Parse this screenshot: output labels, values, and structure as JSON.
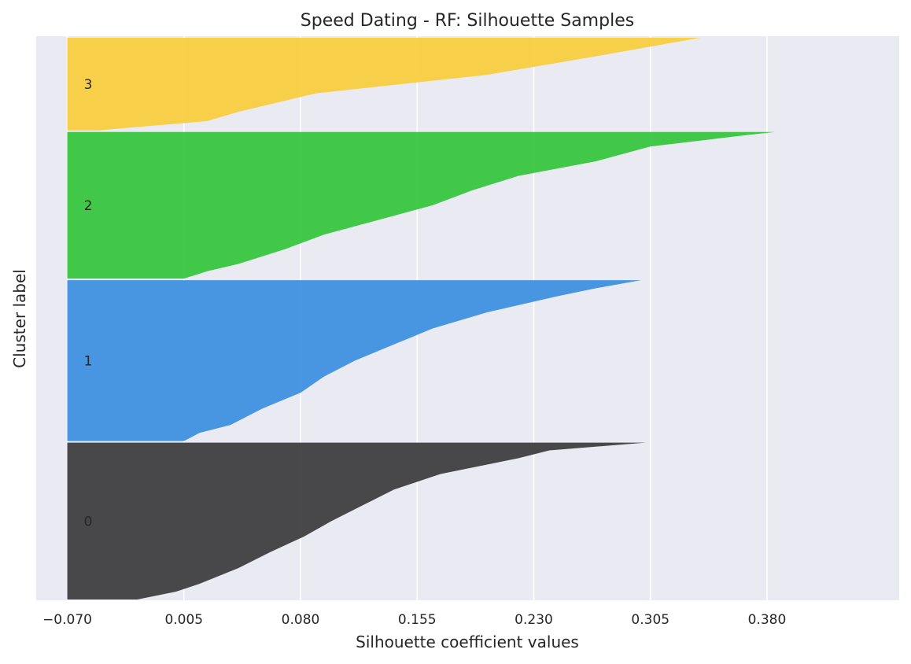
{
  "chart_data": {
    "type": "area",
    "title": "Speed Dating - RF: Silhouette Samples",
    "xlabel": "Silhouette coefficient values",
    "ylabel": "Cluster label",
    "xlim": [
      -0.09,
      0.465
    ],
    "xticks": [
      -0.07,
      0.005,
      0.08,
      0.155,
      0.23,
      0.305,
      0.38
    ],
    "xtick_labels": [
      "−0.070",
      "0.005",
      "0.080",
      "0.155",
      "0.230",
      "0.305",
      "0.380"
    ],
    "grid": true,
    "background": "#eaeaf2",
    "clusters": [
      {
        "label": "0",
        "color": "#3a3a3c",
        "profile": [
          [
            0.0,
            0.302
          ],
          [
            0.05,
            0.24
          ],
          [
            0.1,
            0.22
          ],
          [
            0.2,
            0.17
          ],
          [
            0.3,
            0.14
          ],
          [
            0.4,
            0.12
          ],
          [
            0.5,
            0.1
          ],
          [
            0.6,
            0.082
          ],
          [
            0.7,
            0.06
          ],
          [
            0.8,
            0.04
          ],
          [
            0.9,
            0.015
          ],
          [
            0.95,
            0.0
          ],
          [
            1.0,
            -0.025
          ]
        ]
      },
      {
        "label": "1",
        "color": "#3a8ee0",
        "profile": [
          [
            0.0,
            0.299
          ],
          [
            0.05,
            0.27
          ],
          [
            0.1,
            0.245
          ],
          [
            0.2,
            0.2
          ],
          [
            0.3,
            0.165
          ],
          [
            0.4,
            0.14
          ],
          [
            0.5,
            0.115
          ],
          [
            0.6,
            0.095
          ],
          [
            0.7,
            0.08
          ],
          [
            0.8,
            0.055
          ],
          [
            0.9,
            0.035
          ],
          [
            0.95,
            0.015
          ],
          [
            1.0,
            0.005
          ]
        ]
      },
      {
        "label": "2",
        "color": "#33c43b",
        "profile": [
          [
            0.0,
            0.385
          ],
          [
            0.03,
            0.36
          ],
          [
            0.1,
            0.305
          ],
          [
            0.2,
            0.27
          ],
          [
            0.3,
            0.22
          ],
          [
            0.4,
            0.19
          ],
          [
            0.5,
            0.165
          ],
          [
            0.6,
            0.13
          ],
          [
            0.7,
            0.095
          ],
          [
            0.8,
            0.07
          ],
          [
            0.9,
            0.04
          ],
          [
            0.95,
            0.02
          ],
          [
            1.0,
            0.005
          ]
        ]
      },
      {
        "label": "3",
        "color": "#f7cc3b",
        "profile": [
          [
            0.0,
            0.337
          ],
          [
            0.2,
            0.27
          ],
          [
            0.4,
            0.2
          ],
          [
            0.6,
            0.09
          ],
          [
            0.8,
            0.04
          ],
          [
            0.9,
            0.02
          ],
          [
            1.0,
            -0.05
          ]
        ]
      }
    ]
  }
}
